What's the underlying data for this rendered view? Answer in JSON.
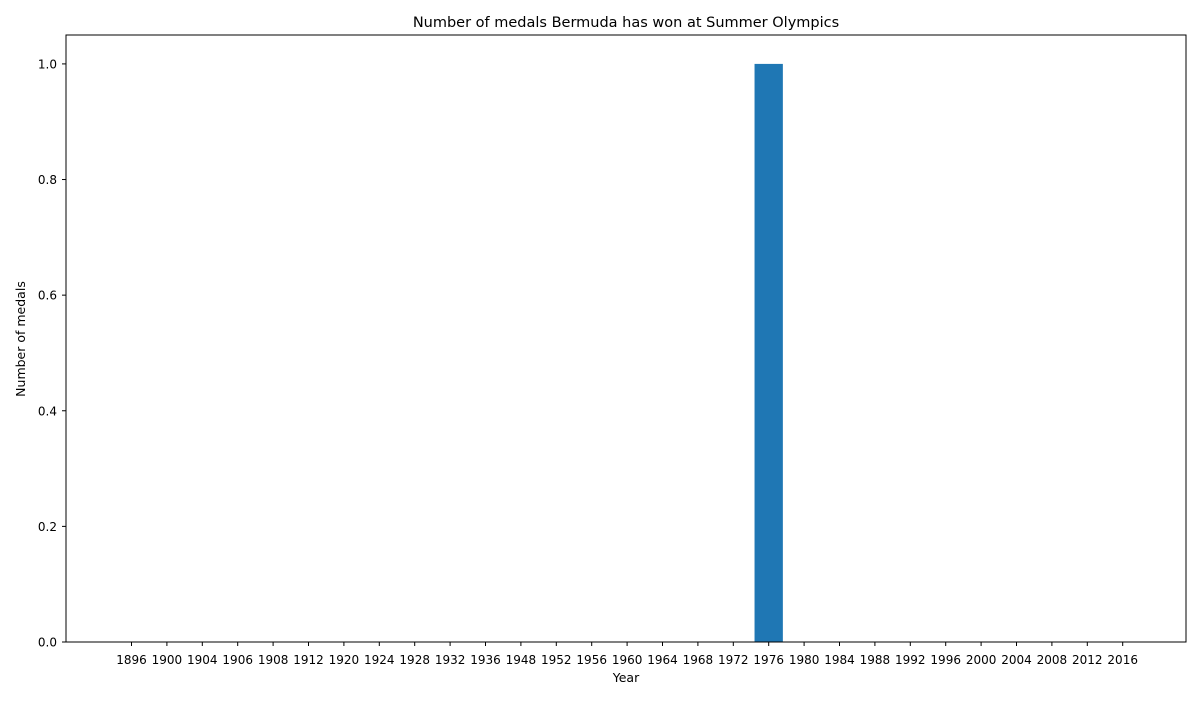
{
  "chart_data": {
    "type": "bar",
    "title": "Number of medals Bermuda has won at Summer Olympics",
    "xlabel": "Year",
    "ylabel": "Number of medals",
    "categories": [
      "1896",
      "1900",
      "1904",
      "1906",
      "1908",
      "1912",
      "1920",
      "1924",
      "1928",
      "1932",
      "1936",
      "1948",
      "1952",
      "1956",
      "1960",
      "1964",
      "1968",
      "1972",
      "1976",
      "1980",
      "1984",
      "1988",
      "1992",
      "1996",
      "2000",
      "2004",
      "2008",
      "2012",
      "2016"
    ],
    "values": [
      0,
      0,
      0,
      0,
      0,
      0,
      0,
      0,
      0,
      0,
      0,
      0,
      0,
      0,
      0,
      0,
      0,
      0,
      1,
      0,
      0,
      0,
      0,
      0,
      0,
      0,
      0,
      0,
      0
    ],
    "ylim": [
      0,
      1.05
    ],
    "yticks": [
      "0.0",
      "0.2",
      "0.4",
      "0.6",
      "0.8",
      "1.0"
    ],
    "grid": false,
    "bar_color": "#1f77b4"
  }
}
